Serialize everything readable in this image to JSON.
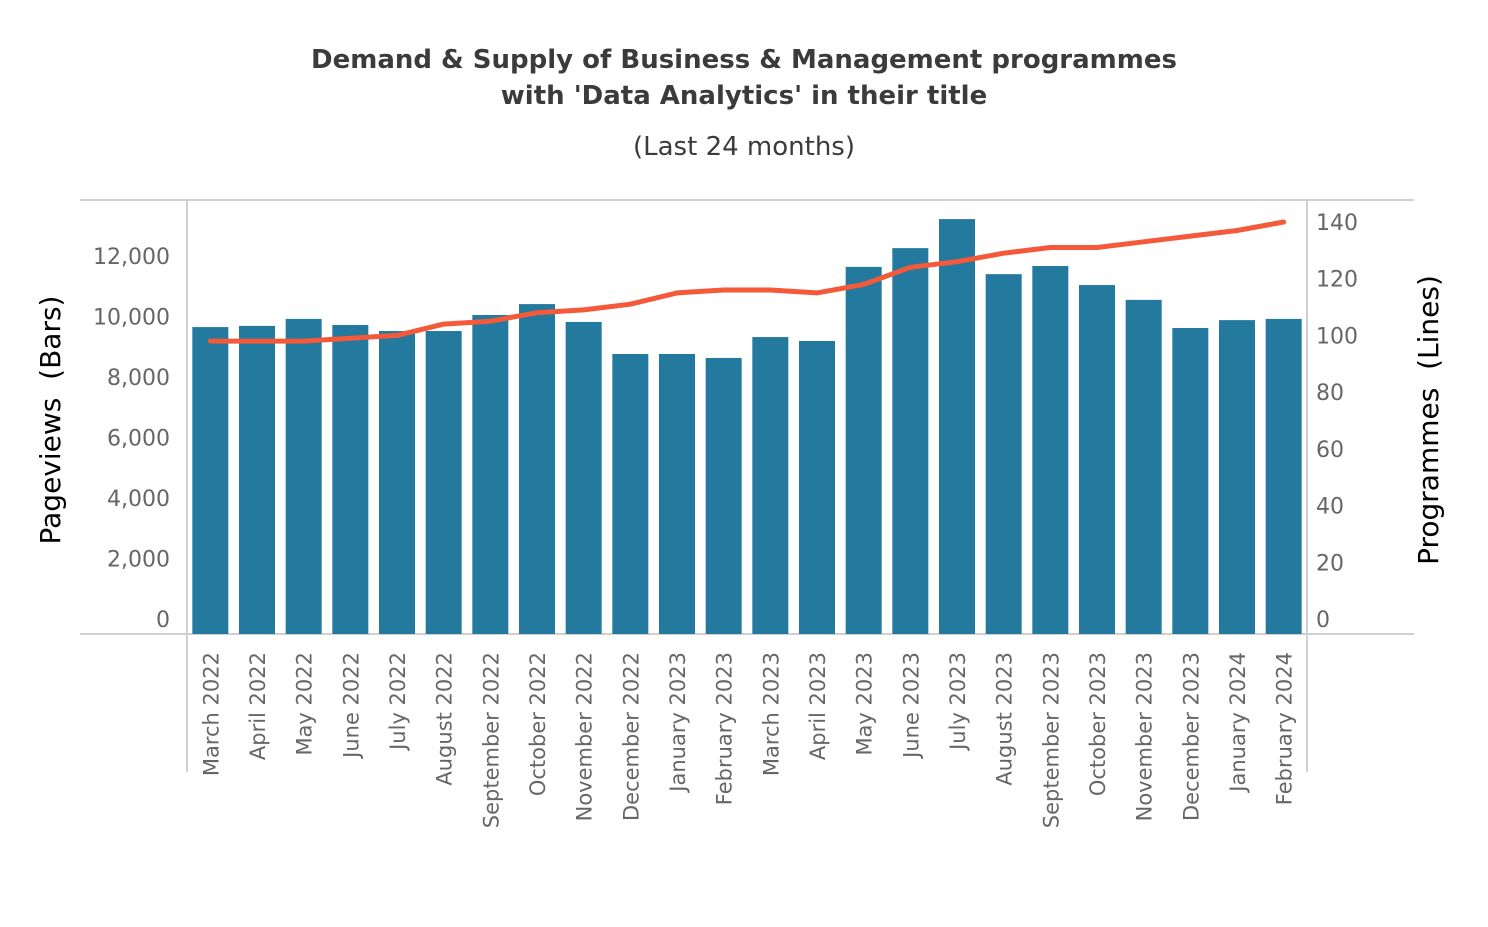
{
  "chart_data": {
    "type": "bar",
    "title": "Demand & Supply of Business & Management programmes with 'Data Analytics' in their title",
    "title_lines": [
      "Demand & Supply of Business & Management programmes",
      "with 'Data Analytics' in their title"
    ],
    "subtitle": "(Last 24 months)",
    "xlabel": "",
    "ylabel": "Pageviews  (Bars)",
    "y2label": "Programmes  (Lines)",
    "ylim": [
      0,
      14000
    ],
    "y2lim": [
      0,
      140
    ],
    "yticks": [
      0,
      2000,
      4000,
      6000,
      8000,
      10000,
      12000
    ],
    "ytick_labels": [
      "0",
      "2,000",
      "4,000",
      "6,000",
      "8,000",
      "10,000",
      "12,000"
    ],
    "y2ticks": [
      0,
      20,
      40,
      60,
      80,
      100,
      120,
      140
    ],
    "y2tick_labels": [
      "0",
      "20",
      "40",
      "60",
      "80",
      "100",
      "120",
      "140"
    ],
    "grid": false,
    "legend": "none",
    "categories": [
      "March 2022",
      "April 2022",
      "May 2022",
      "June 2022",
      "July 2022",
      "August 2022",
      "September 2022",
      "October 2022",
      "November 2022",
      "December 2022",
      "January 2023",
      "February 2023",
      "March 2023",
      "April 2023",
      "May 2023",
      "June 2023",
      "July 2023",
      "August 2023",
      "September 2023",
      "October 2023",
      "November 2023",
      "December 2023",
      "January 2024",
      "February 2024"
    ],
    "series": [
      {
        "name": "Pageviews",
        "type": "bar",
        "axis": "left",
        "color": "#23799e",
        "values": [
          9650,
          9690,
          9920,
          9720,
          9520,
          9520,
          10050,
          10410,
          9820,
          8760,
          8760,
          8630,
          9320,
          9190,
          11640,
          12260,
          13220,
          11400,
          11670,
          11040,
          10550,
          9620,
          9880,
          9920
        ]
      },
      {
        "name": "Programmes",
        "type": "line",
        "axis": "right",
        "color": "#f4593a",
        "values": [
          98,
          98,
          98,
          99,
          100,
          104,
          105,
          108,
          109,
          111,
          115,
          116,
          116,
          115,
          118,
          124,
          126,
          129,
          131,
          131,
          133,
          135,
          137,
          140
        ]
      }
    ]
  }
}
